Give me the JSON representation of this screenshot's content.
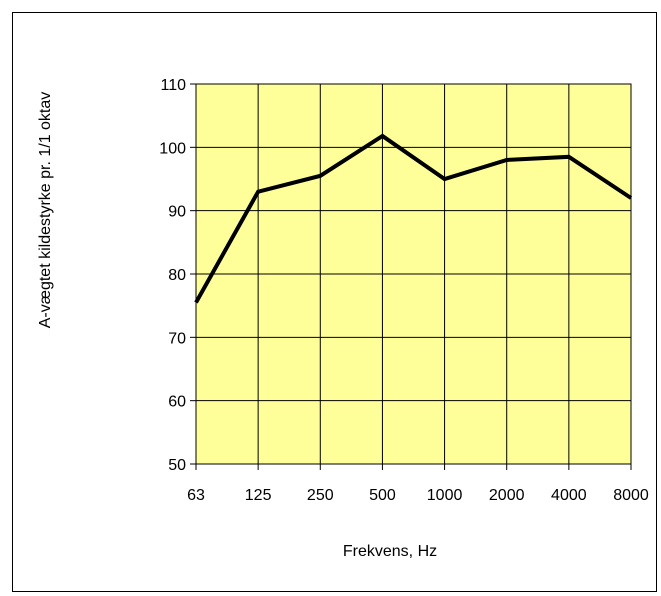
{
  "chart_data": {
    "type": "line",
    "title": "",
    "xlabel": "Frekvens, Hz",
    "ylabel": "A-vægtet kildestyrke pr. 1/1 oktav",
    "categories": [
      "63",
      "125",
      "250",
      "500",
      "1000",
      "2000",
      "4000",
      "8000"
    ],
    "series": [
      {
        "values": [
          75.5,
          93,
          95.5,
          101.8,
          95,
          98,
          98.5,
          92
        ]
      }
    ],
    "ylim": [
      50,
      110
    ],
    "yticks": [
      50,
      60,
      70,
      80,
      90,
      100,
      110
    ],
    "grid": true,
    "colors": {
      "plot_background": "#ffff99",
      "grid": "#000000",
      "line": "#000000"
    }
  }
}
